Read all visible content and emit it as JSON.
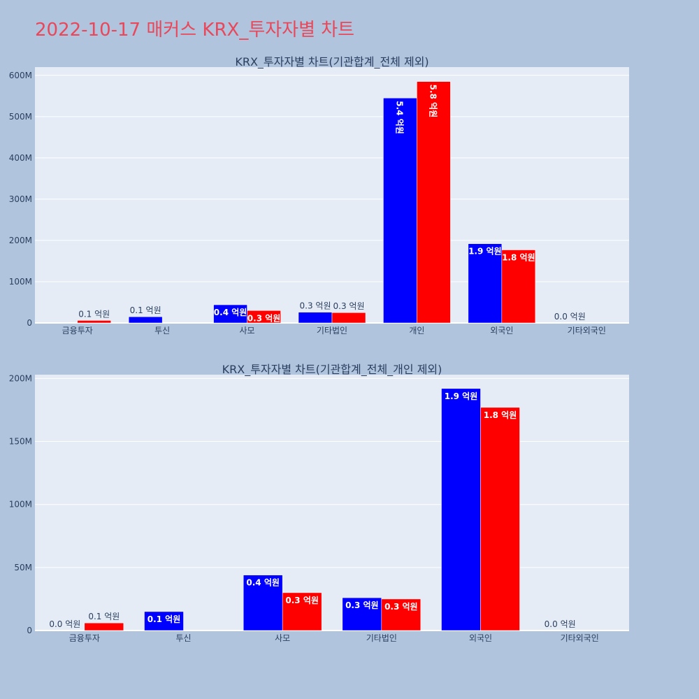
{
  "page_title": "2022-10-17 매커스 KRX_투자자별 차트",
  "colors": {
    "buy": "#0000ff",
    "sell": "#ff0000",
    "plot_bg": "#e5ecf6",
    "page_bg": "#b0c4de"
  },
  "chart_data": [
    {
      "type": "bar",
      "title": "KRX_투자자별 차트(기관합계_전체 제외)",
      "categories": [
        "금융투자",
        "투신",
        "사모",
        "기타법인",
        "개인",
        "외국인",
        "기타외국인"
      ],
      "ylim": [
        0,
        620000000
      ],
      "yticks": [
        0,
        100000000,
        200000000,
        300000000,
        400000000,
        500000000,
        600000000
      ],
      "ytick_labels": [
        "0",
        "100M",
        "200M",
        "300M",
        "400M",
        "500M",
        "600M"
      ],
      "grid": true,
      "series": [
        {
          "color": "#0000ff",
          "values": [
            null,
            15000000,
            44000000,
            26000000,
            545000000,
            192000000,
            0
          ],
          "labels": [
            "",
            "0.1 억원",
            "0.4 억원",
            "0.3 억원",
            "5.4 억원",
            "1.9 억원",
            "0.0 억원"
          ]
        },
        {
          "color": "#ff0000",
          "values": [
            6000000,
            null,
            30000000,
            25000000,
            585000000,
            177000000,
            null
          ],
          "labels": [
            "0.1 억원",
            "",
            "0.3 억원",
            "0.3 억원",
            "5.8 억원",
            "1.8 억원",
            ""
          ]
        }
      ]
    },
    {
      "type": "bar",
      "title": "KRX_투자자별 차트(기관합계_전체_개인 제외)",
      "categories": [
        "금융투자",
        "투신",
        "사모",
        "기타법인",
        "외국인",
        "기타외국인"
      ],
      "ylim": [
        0,
        203000000
      ],
      "yticks": [
        0,
        50000000,
        100000000,
        150000000,
        200000000
      ],
      "ytick_labels": [
        "0",
        "50M",
        "100M",
        "150M",
        "200M"
      ],
      "grid": true,
      "series": [
        {
          "color": "#0000ff",
          "values": [
            0,
            15000000,
            44000000,
            26000000,
            192000000,
            0
          ],
          "labels": [
            "0.0 억원",
            "0.1 억원",
            "0.4 억원",
            "0.3 억원",
            "1.9 억원",
            "0.0 억원"
          ]
        },
        {
          "color": "#ff0000",
          "values": [
            6000000,
            null,
            30000000,
            25000000,
            177000000,
            null
          ],
          "labels": [
            "0.1 억원",
            "",
            "0.3 억원",
            "0.3 억원",
            "1.8 억원",
            ""
          ]
        }
      ]
    }
  ]
}
